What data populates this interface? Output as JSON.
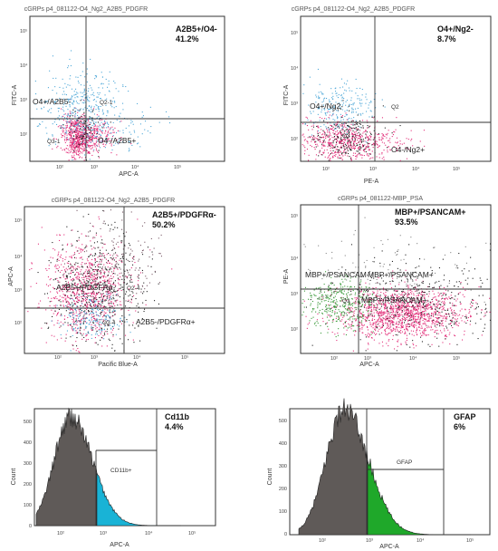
{
  "panels": {
    "p1": {
      "title": "cGRPs p4_081122-O4_Ng2_A2B5_PDGFR",
      "xlabel": "APC-A",
      "ylabel": "FITC-A",
      "stat_label": "A2B5+/O4-",
      "stat_value": "41.2%",
      "q_ul": "O4+/A2B5-",
      "q_ur": "Q2-1",
      "q_ll": "Q3-1",
      "q_lr": "O4-/A2B5+"
    },
    "p2": {
      "title": "cGRPs p4_081122-O4_Ng2_A2B5_PDGFR",
      "xlabel": "PE-A",
      "ylabel": "FITC-A",
      "stat_label": "O4+/Ng2-",
      "stat_value": "8.7%",
      "q_ul": "O4+/Ng2-",
      "q_ur": "Q2",
      "q_ll": "Q3",
      "q_lr": "O4-/Ng2+"
    },
    "p3": {
      "title": "cGRPs p4_081122-O4_Ng2_A2B5_PDGFR",
      "xlabel": "Pacific Blue-A",
      "ylabel": "APC-A",
      "stat_label": "A2B5+/PDGFRα-",
      "stat_value": "50.2%",
      "q_ul": "A2B5+/PDGFRα-",
      "q_ur": "Q2-4",
      "q_ll": "Q3-4",
      "q_lr": "A2B5-/PDGFRα+"
    },
    "p4": {
      "title": "cGRPs p4_081122-MBP_PSA",
      "xlabel": "APC-A",
      "ylabel": "PE-A",
      "stat_label": "MBP+/PSANCAM+",
      "stat_value": "93.5%",
      "q_ul": "MBP+/PSANCAM-",
      "q_ur": "MBP+/PSANCAM+",
      "q_ll": "Q3",
      "q_lr": "MBP+/PSANCAM+"
    },
    "p5": {
      "xlabel": "APC-A",
      "ylabel": "Count",
      "stat_label": "Cd11b",
      "stat_value": "4.4%",
      "gate_label": "CD11b+"
    },
    "p6": {
      "xlabel": "APC-A",
      "ylabel": "Count",
      "stat_label": "GFAP",
      "stat_value": "6%",
      "gate_label": "GFAP"
    }
  },
  "tick_labels": {
    "x": [
      "10²",
      "10³",
      "10⁴",
      "10⁵"
    ],
    "y": [
      "10²",
      "10³",
      "10⁴",
      "10⁵"
    ],
    "count": [
      "0",
      "100",
      "200",
      "300",
      "400",
      "500"
    ],
    "count_gfap": [
      "0",
      "100",
      "200",
      "300",
      "400",
      "500"
    ]
  },
  "chart_data": [
    {
      "type": "scatter",
      "xlabel": "APC-A",
      "ylabel": "FITC-A",
      "quadrant_percent": {
        "A2B5+/O4-": 41.2
      }
    },
    {
      "type": "scatter",
      "xlabel": "PE-A",
      "ylabel": "FITC-A",
      "quadrant_percent": {
        "O4+/Ng2-": 8.7
      }
    },
    {
      "type": "scatter",
      "xlabel": "Pacific Blue-A",
      "ylabel": "APC-A",
      "quadrant_percent": {
        "A2B5+/PDGFRα-": 50.2
      }
    },
    {
      "type": "scatter",
      "xlabel": "APC-A",
      "ylabel": "PE-A",
      "quadrant_percent": {
        "MBP+/PSANCAM+": 93.5
      }
    },
    {
      "type": "area",
      "xlabel": "APC-A",
      "ylabel": "Count",
      "ylim": [
        0,
        550
      ],
      "gate": "CD11b+",
      "gate_percent": 4.4,
      "fill_colors": [
        "#5f5a58",
        "#19b3d6"
      ]
    },
    {
      "type": "area",
      "xlabel": "APC-A",
      "ylabel": "Count",
      "ylim": [
        0,
        550
      ],
      "gate": "GFAP",
      "gate_percent": 6,
      "fill_colors": [
        "#5f5a58",
        "#1fa82a"
      ]
    }
  ],
  "colors": {
    "pink": "#e3307b",
    "blue": "#4ea8d8",
    "black": "#222222",
    "green": "#3a9a3a",
    "hist_gray": "#5f5a58",
    "cyan": "#19b3d6",
    "green_fill": "#1fa82a"
  }
}
